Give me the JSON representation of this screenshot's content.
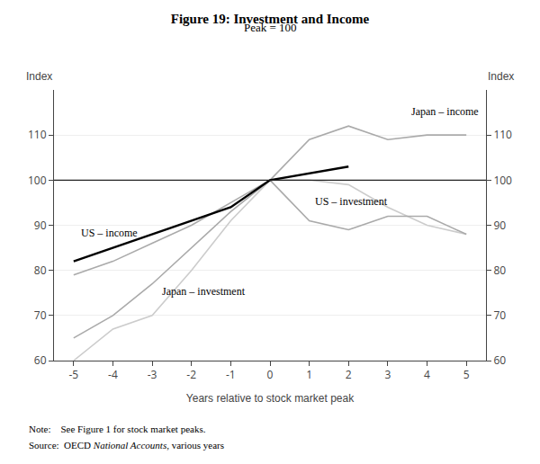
{
  "chart_data": {
    "type": "line",
    "title": "Figure 19: Investment and Income",
    "subtitle": "Peak = 100",
    "xlabel": "Years relative to stock market peak",
    "ylabel": "Index",
    "y2label": "Index",
    "xlim": [
      -5.5,
      5.5
    ],
    "xticks": [
      -5,
      -4,
      -3,
      -2,
      -1,
      0,
      1,
      2,
      3,
      4,
      5
    ],
    "ylim": [
      60,
      120
    ],
    "yticks": [
      60,
      70,
      80,
      90,
      100,
      110
    ],
    "y2lim": [
      60,
      120
    ],
    "y2ticks": [
      60,
      70,
      80,
      90,
      100,
      110
    ],
    "grid": "y",
    "series": [
      {
        "color": "#cccccc",
        "x": [
          -5,
          -4,
          -3,
          -2,
          -1,
          0,
          1,
          2,
          3,
          4,
          5
        ],
        "values": [
          60,
          67,
          70,
          80,
          91,
          100,
          100,
          99,
          94,
          90,
          88
        ]
      },
      {
        "color": "#aaaaaa",
        "x": [
          -5,
          -4,
          -3,
          -2,
          -1,
          0,
          1,
          2,
          3,
          4,
          5
        ],
        "values": [
          65,
          70,
          77,
          85,
          93,
          100,
          109,
          112,
          109,
          110,
          110
        ]
      },
      {
        "color": "#aaaaaa",
        "x": [
          -5,
          -4,
          -3,
          -2,
          -1,
          0,
          1,
          2,
          3,
          4,
          5
        ],
        "values": [
          79,
          82,
          86,
          90,
          95,
          100,
          91,
          89,
          92,
          92,
          88
        ]
      },
      {
        "color": "#000000",
        "x": [
          -5,
          -4,
          -3,
          -2,
          -1,
          0,
          1,
          2
        ],
        "values": [
          82,
          85,
          88,
          91,
          94,
          100,
          101.5,
          103
        ]
      }
    ],
    "hlines": [
      100
    ],
    "annotations": [
      {
        "x": -4.85,
        "y": 86.5,
        "text": "US – income"
      },
      {
        "x": 1.1,
        "y": 93.5,
        "text": "US – investment"
      },
      {
        "x": 3.55,
        "y": 113.5,
        "text": "Japan – income"
      },
      {
        "x": -2.8,
        "y": 73.5,
        "text": "Japan – investment"
      }
    ],
    "note": "Note:    See Figure 1 for stock market peaks.",
    "source": {
      "plain": "Source:  OECD ",
      "italic": "National Accounts",
      "end": ", various years"
    }
  }
}
